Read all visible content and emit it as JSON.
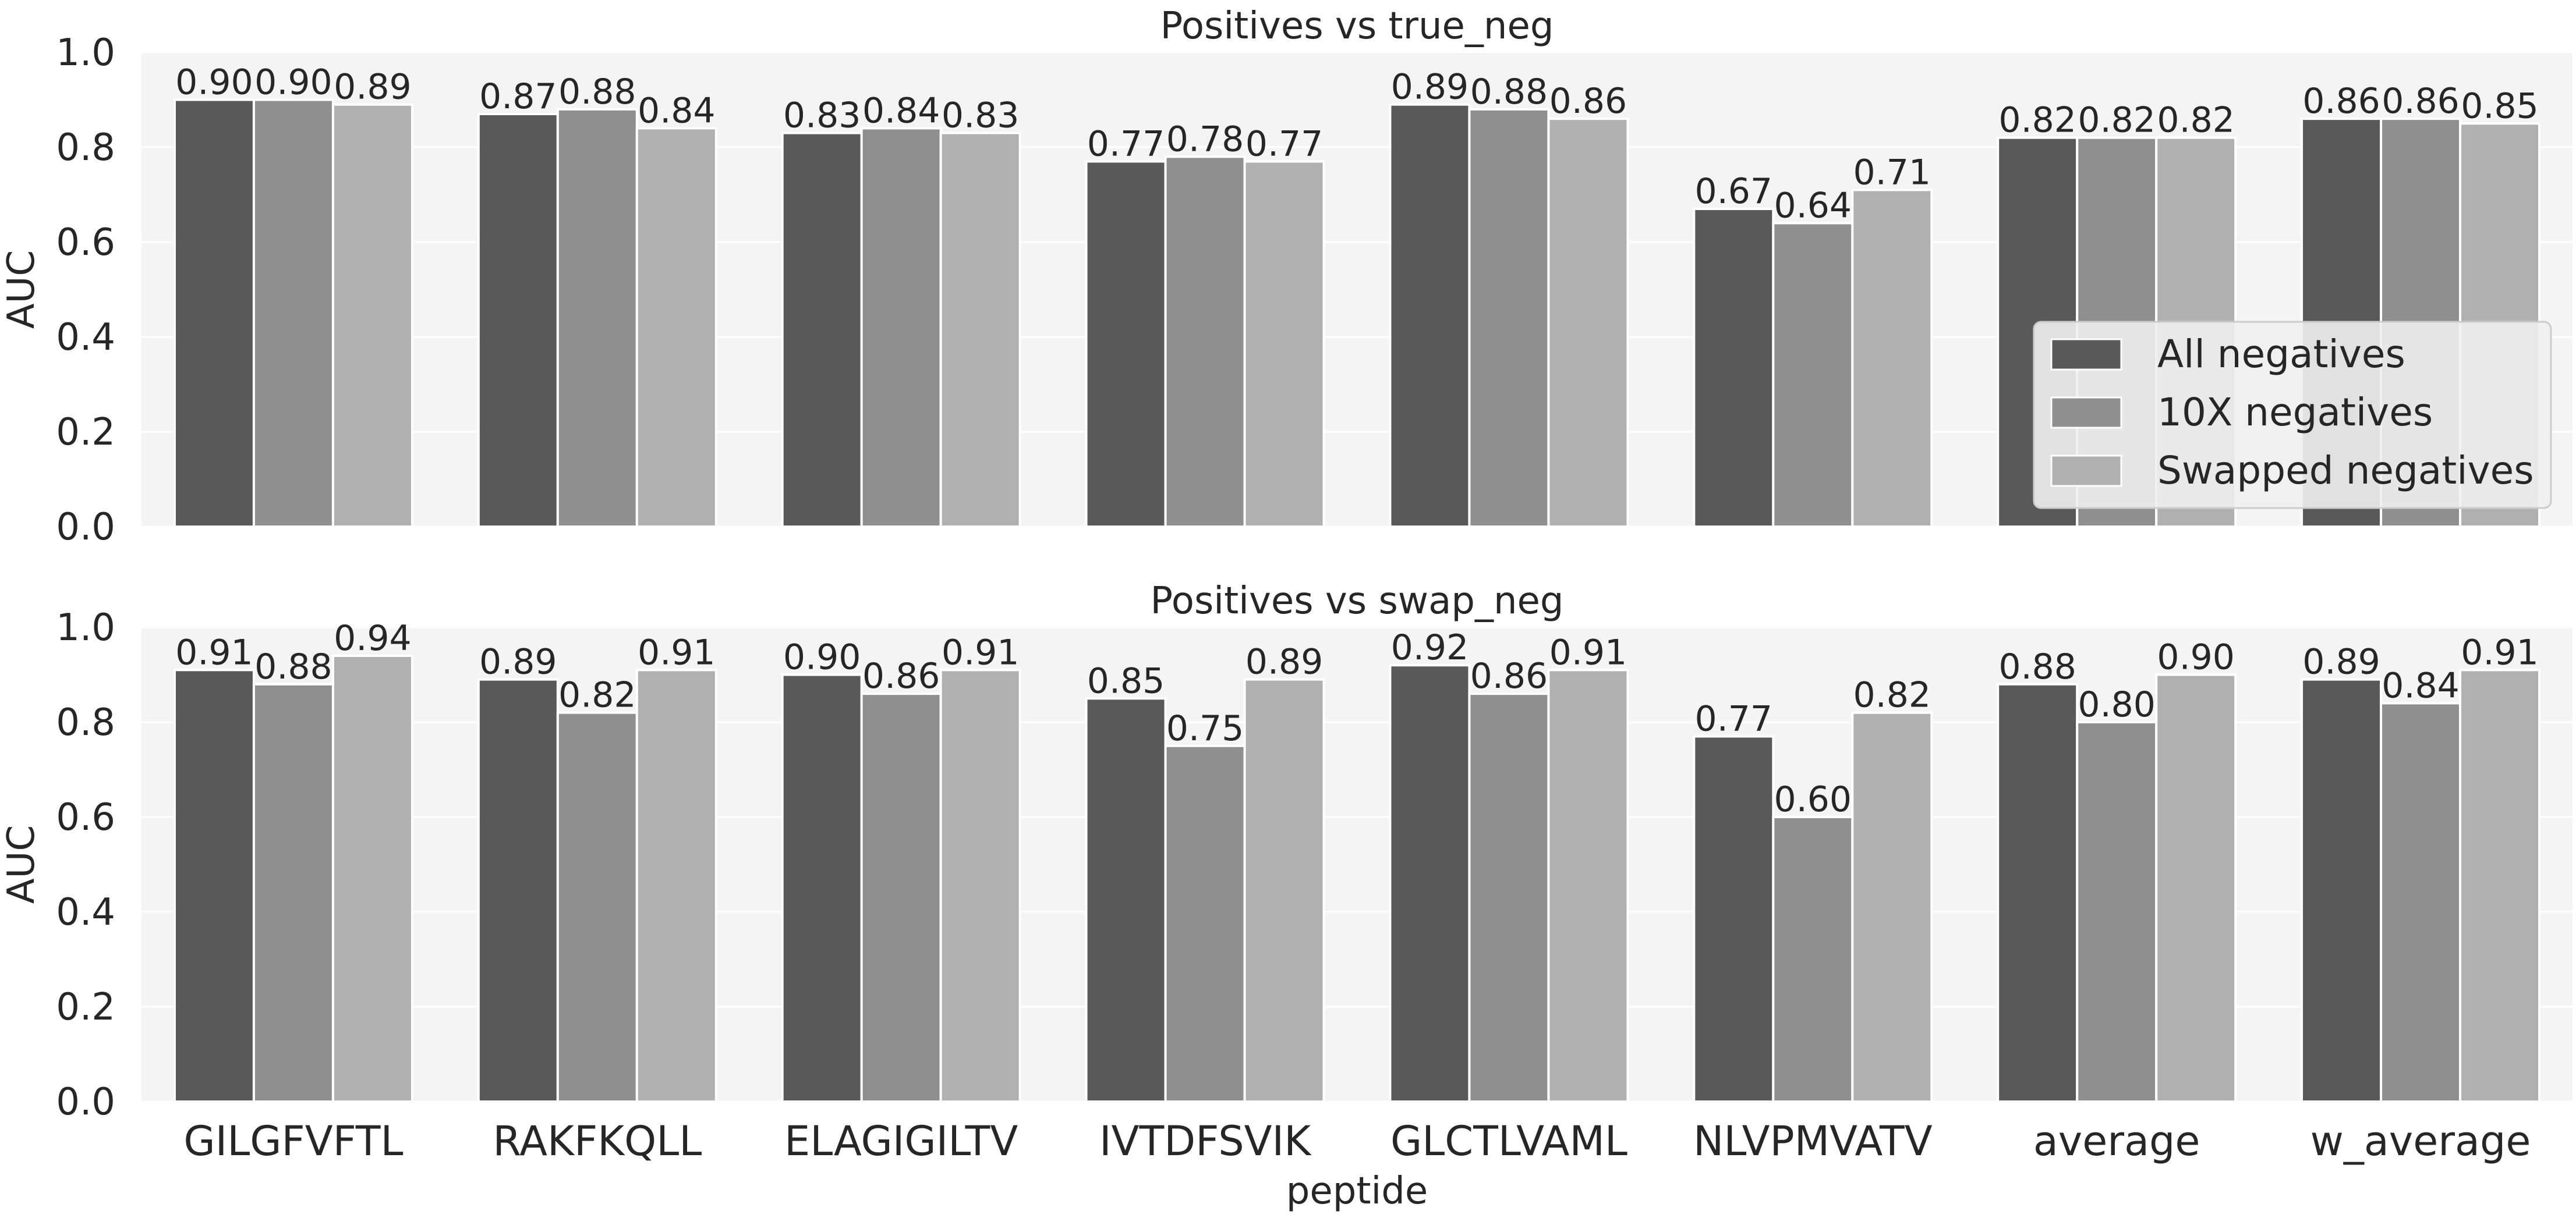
{
  "chart_data": {
    "type": "bar",
    "xlabel": "peptide",
    "ylabel": "AUC",
    "ylim": [
      0,
      1.0
    ],
    "yticks": [
      "0.0",
      "0.2",
      "0.4",
      "0.6",
      "0.8",
      "1.0"
    ],
    "categories": [
      "GILGFVFTL",
      "RAKFKQLL",
      "ELAGIGILTV",
      "IVTDFSVIK",
      "GLCTLVAML",
      "NLVPMVATV",
      "average",
      "w_average"
    ],
    "legend": {
      "position": "right",
      "entries": [
        "All negatives",
        "10X negatives",
        "Swapped negatives"
      ]
    },
    "series_colors": [
      "#595959",
      "#8f8f8f",
      "#b0b0b0"
    ],
    "background_color": "#f4f4f4",
    "panels": [
      {
        "title": "Positives vs true_neg",
        "series": [
          {
            "name": "All negatives",
            "values": [
              0.9,
              0.87,
              0.83,
              0.77,
              0.89,
              0.67,
              0.82,
              0.86
            ],
            "labels": [
              "0.90",
              "0.87",
              "0.83",
              "0.77",
              "0.89",
              "0.67",
              "0.82",
              "0.86"
            ]
          },
          {
            "name": "10X negatives",
            "values": [
              0.9,
              0.88,
              0.84,
              0.78,
              0.88,
              0.64,
              0.82,
              0.86
            ],
            "labels": [
              "0.90",
              "0.88",
              "0.84",
              "0.78",
              "0.88",
              "0.64",
              "0.82",
              "0.86"
            ]
          },
          {
            "name": "Swapped negatives",
            "values": [
              0.89,
              0.84,
              0.83,
              0.77,
              0.86,
              0.71,
              0.82,
              0.85
            ],
            "labels": [
              "0.89",
              "0.84",
              "0.83",
              "0.77",
              "0.86",
              "0.71",
              "0.82",
              "0.85"
            ]
          }
        ]
      },
      {
        "title": "Positives vs swap_neg",
        "series": [
          {
            "name": "All negatives",
            "values": [
              0.91,
              0.89,
              0.9,
              0.85,
              0.92,
              0.77,
              0.88,
              0.89
            ],
            "labels": [
              "0.91",
              "0.89",
              "0.90",
              "0.85",
              "0.92",
              "0.77",
              "0.88",
              "0.89"
            ]
          },
          {
            "name": "10X negatives",
            "values": [
              0.88,
              0.82,
              0.86,
              0.75,
              0.86,
              0.6,
              0.8,
              0.84
            ],
            "labels": [
              "0.88",
              "0.82",
              "0.86",
              "0.75",
              "0.86",
              "0.60",
              "0.80",
              "0.84"
            ]
          },
          {
            "name": "Swapped negatives",
            "values": [
              0.94,
              0.91,
              0.91,
              0.89,
              0.91,
              0.82,
              0.9,
              0.91
            ],
            "labels": [
              "0.94",
              "0.91",
              "0.91",
              "0.89",
              "0.91",
              "0.82",
              "0.90",
              "0.91"
            ]
          }
        ]
      }
    ]
  }
}
